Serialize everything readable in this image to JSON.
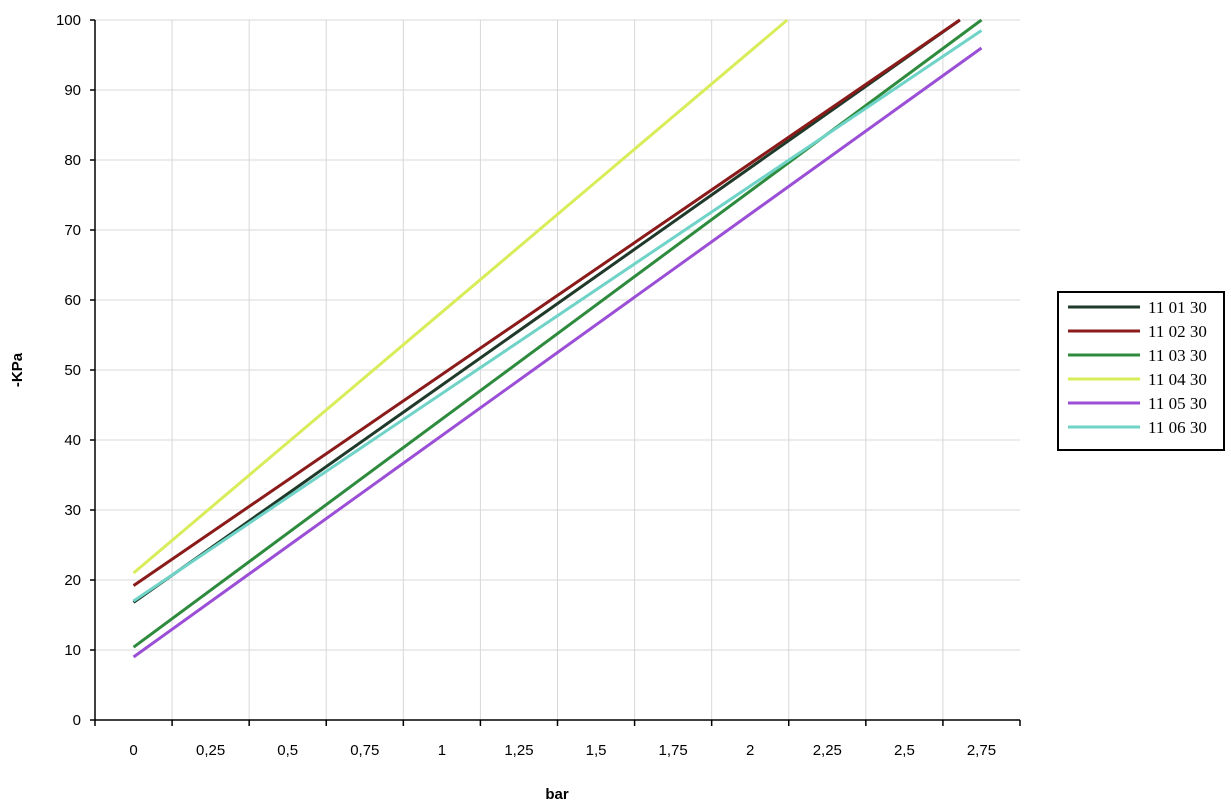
{
  "chart_data": {
    "type": "line",
    "title": "",
    "xlabel": "bar",
    "ylabel": "-KPa",
    "xlim": [
      -0.125,
      2.875
    ],
    "ylim": [
      0,
      100
    ],
    "grid": true,
    "legend_position": "right",
    "x_tick_labels": [
      "0",
      "0,25",
      "0,5",
      "0,75",
      "1",
      "1,25",
      "1,5",
      "1,75",
      "2",
      "2,25",
      "2,5",
      "2,75"
    ],
    "x_tick_values": [
      0,
      0.25,
      0.5,
      0.75,
      1,
      1.25,
      1.5,
      1.75,
      2,
      2.25,
      2.5,
      2.75
    ],
    "y_tick_labels": [
      "0",
      "10",
      "20",
      "30",
      "40",
      "50",
      "60",
      "70",
      "80",
      "90",
      "100"
    ],
    "y_tick_values": [
      0,
      10,
      20,
      30,
      40,
      50,
      60,
      70,
      80,
      90,
      100
    ],
    "series": [
      {
        "name": "11 01 30",
        "color": "#1f3a2a",
        "x": [
          0,
          2.68
        ],
        "y": [
          16.8,
          100
        ]
      },
      {
        "name": "11 02 30",
        "color": "#8b1a1a",
        "x": [
          0,
          2.68
        ],
        "y": [
          19.2,
          100
        ]
      },
      {
        "name": "11 03 30",
        "color": "#2e8b3e",
        "x": [
          0,
          2.75
        ],
        "y": [
          10.4,
          100
        ]
      },
      {
        "name": "11 04 30",
        "color": "#d9ec5a",
        "x": [
          0,
          2.12
        ],
        "y": [
          21.0,
          100
        ]
      },
      {
        "name": "11 05 30",
        "color": "#9b4fd6",
        "x": [
          0,
          2.75
        ],
        "y": [
          9.0,
          96.0
        ]
      },
      {
        "name": "11 06 30",
        "color": "#6fd3c8",
        "x": [
          0,
          2.75
        ],
        "y": [
          17.0,
          98.5
        ]
      }
    ]
  }
}
